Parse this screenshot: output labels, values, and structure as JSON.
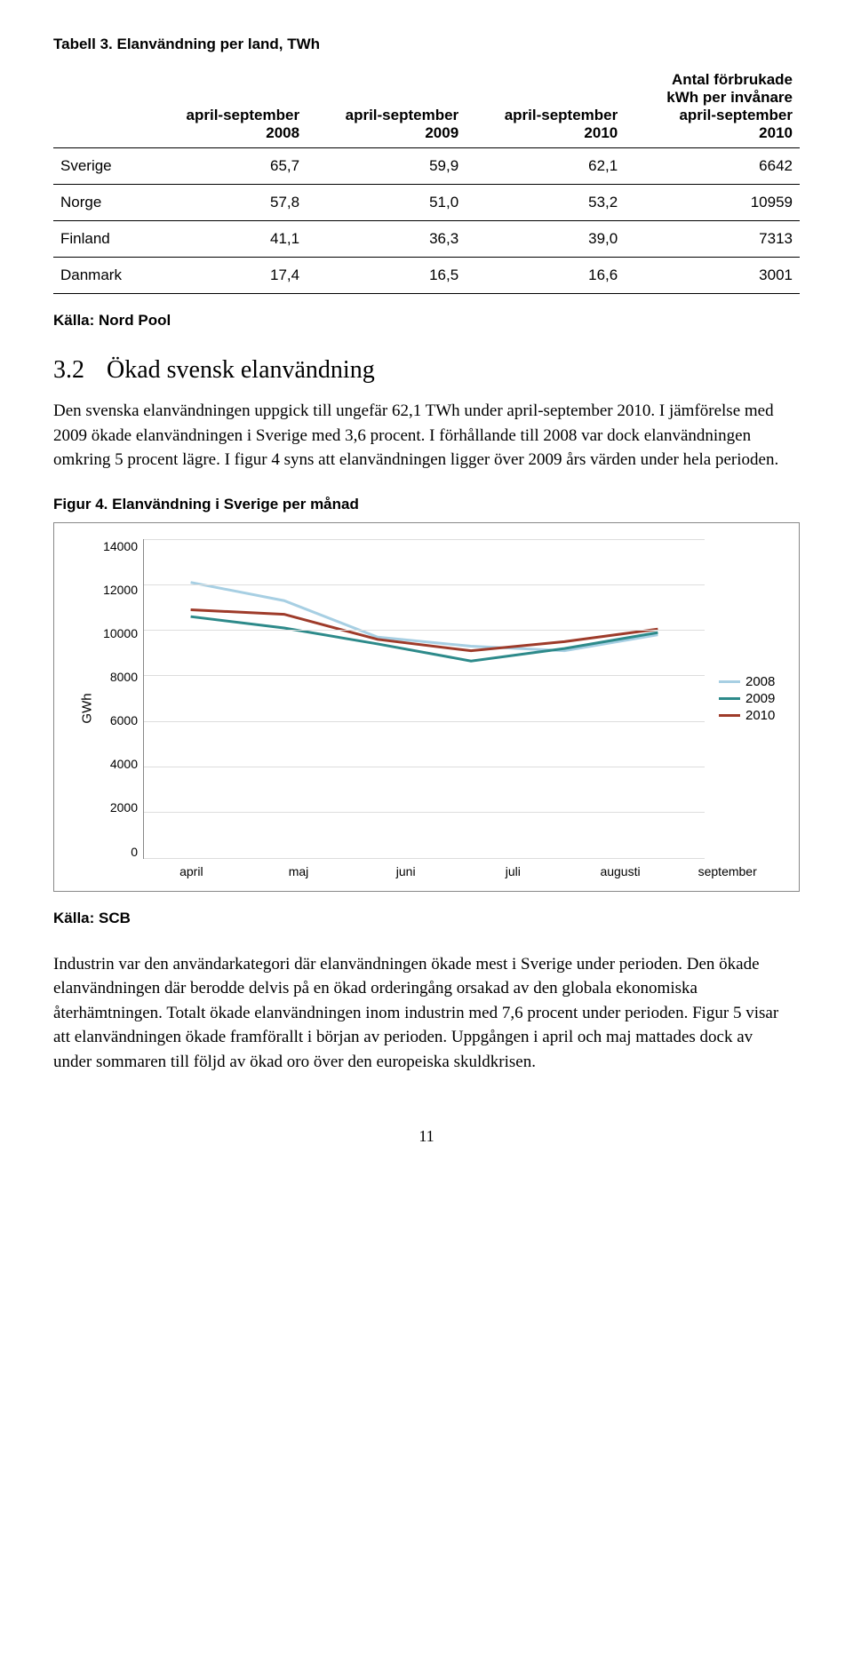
{
  "table": {
    "title": "Tabell 3. Elanvändning per land, TWh",
    "columns": [
      "",
      "april-september 2008",
      "april-september 2009",
      "april-september 2010",
      "Antal förbrukade kWh per invånare april-september 2010"
    ],
    "rows": [
      [
        "Sverige",
        "65,7",
        "59,9",
        "62,1",
        "6642"
      ],
      [
        "Norge",
        "57,8",
        "51,0",
        "53,2",
        "10959"
      ],
      [
        "Finland",
        "41,1",
        "36,3",
        "39,0",
        "7313"
      ],
      [
        "Danmark",
        "17,4",
        "16,5",
        "16,6",
        "3001"
      ]
    ],
    "source": "Källa: Nord Pool"
  },
  "section": {
    "num": "3.2",
    "heading": "Ökad svensk elanvändning",
    "para1": "Den svenska elanvändningen uppgick till ungefär 62,1 TWh under april-september 2010. I jämförelse med 2009 ökade elanvändningen i Sverige med 3,6 procent. I förhållande till 2008 var dock elanvändningen omkring 5 procent lägre. I figur 4 syns att elanvändningen ligger över 2009 års värden under hela perioden."
  },
  "figure": {
    "title": "Figur 4. Elanvändning i Sverige per månad",
    "ylabel": "GWh",
    "ylim": [
      0,
      14000
    ],
    "ytick_step": 2000,
    "yticks": [
      "14000",
      "12000",
      "10000",
      "8000",
      "6000",
      "4000",
      "2000",
      "0"
    ],
    "categories": [
      "april",
      "maj",
      "juni",
      "juli",
      "augusti",
      "september"
    ],
    "series": [
      {
        "name": "2008",
        "color": "#a7cfe3",
        "width": 3,
        "values": [
          12100,
          11300,
          9700,
          9300,
          9100,
          9800
        ]
      },
      {
        "name": "2009",
        "color": "#2d8a8a",
        "width": 3,
        "values": [
          10600,
          10100,
          9400,
          8650,
          9200,
          9900
        ]
      },
      {
        "name": "2010",
        "color": "#9e3b2a",
        "width": 3,
        "values": [
          10900,
          10700,
          9600,
          9100,
          9500,
          10050
        ]
      }
    ],
    "background_color": "#ffffff",
    "grid_color": "#dddddd",
    "source": "Källa: SCB"
  },
  "para2": "Industrin var den användarkategori där elanvändningen ökade mest i Sverige under perioden. Den ökade elanvändningen där berodde delvis på en ökad orderingång orsakad av den globala ekonomiska återhämtningen. Totalt ökade elanvändningen inom industrin med 7,6 procent under perioden. Figur 5 visar att elanvändningen ökade framförallt i början av perioden. Uppgången i april och maj mattades dock av under sommaren till följd av ökad oro över den europeiska skuldkrisen.",
  "pagenum": "11"
}
